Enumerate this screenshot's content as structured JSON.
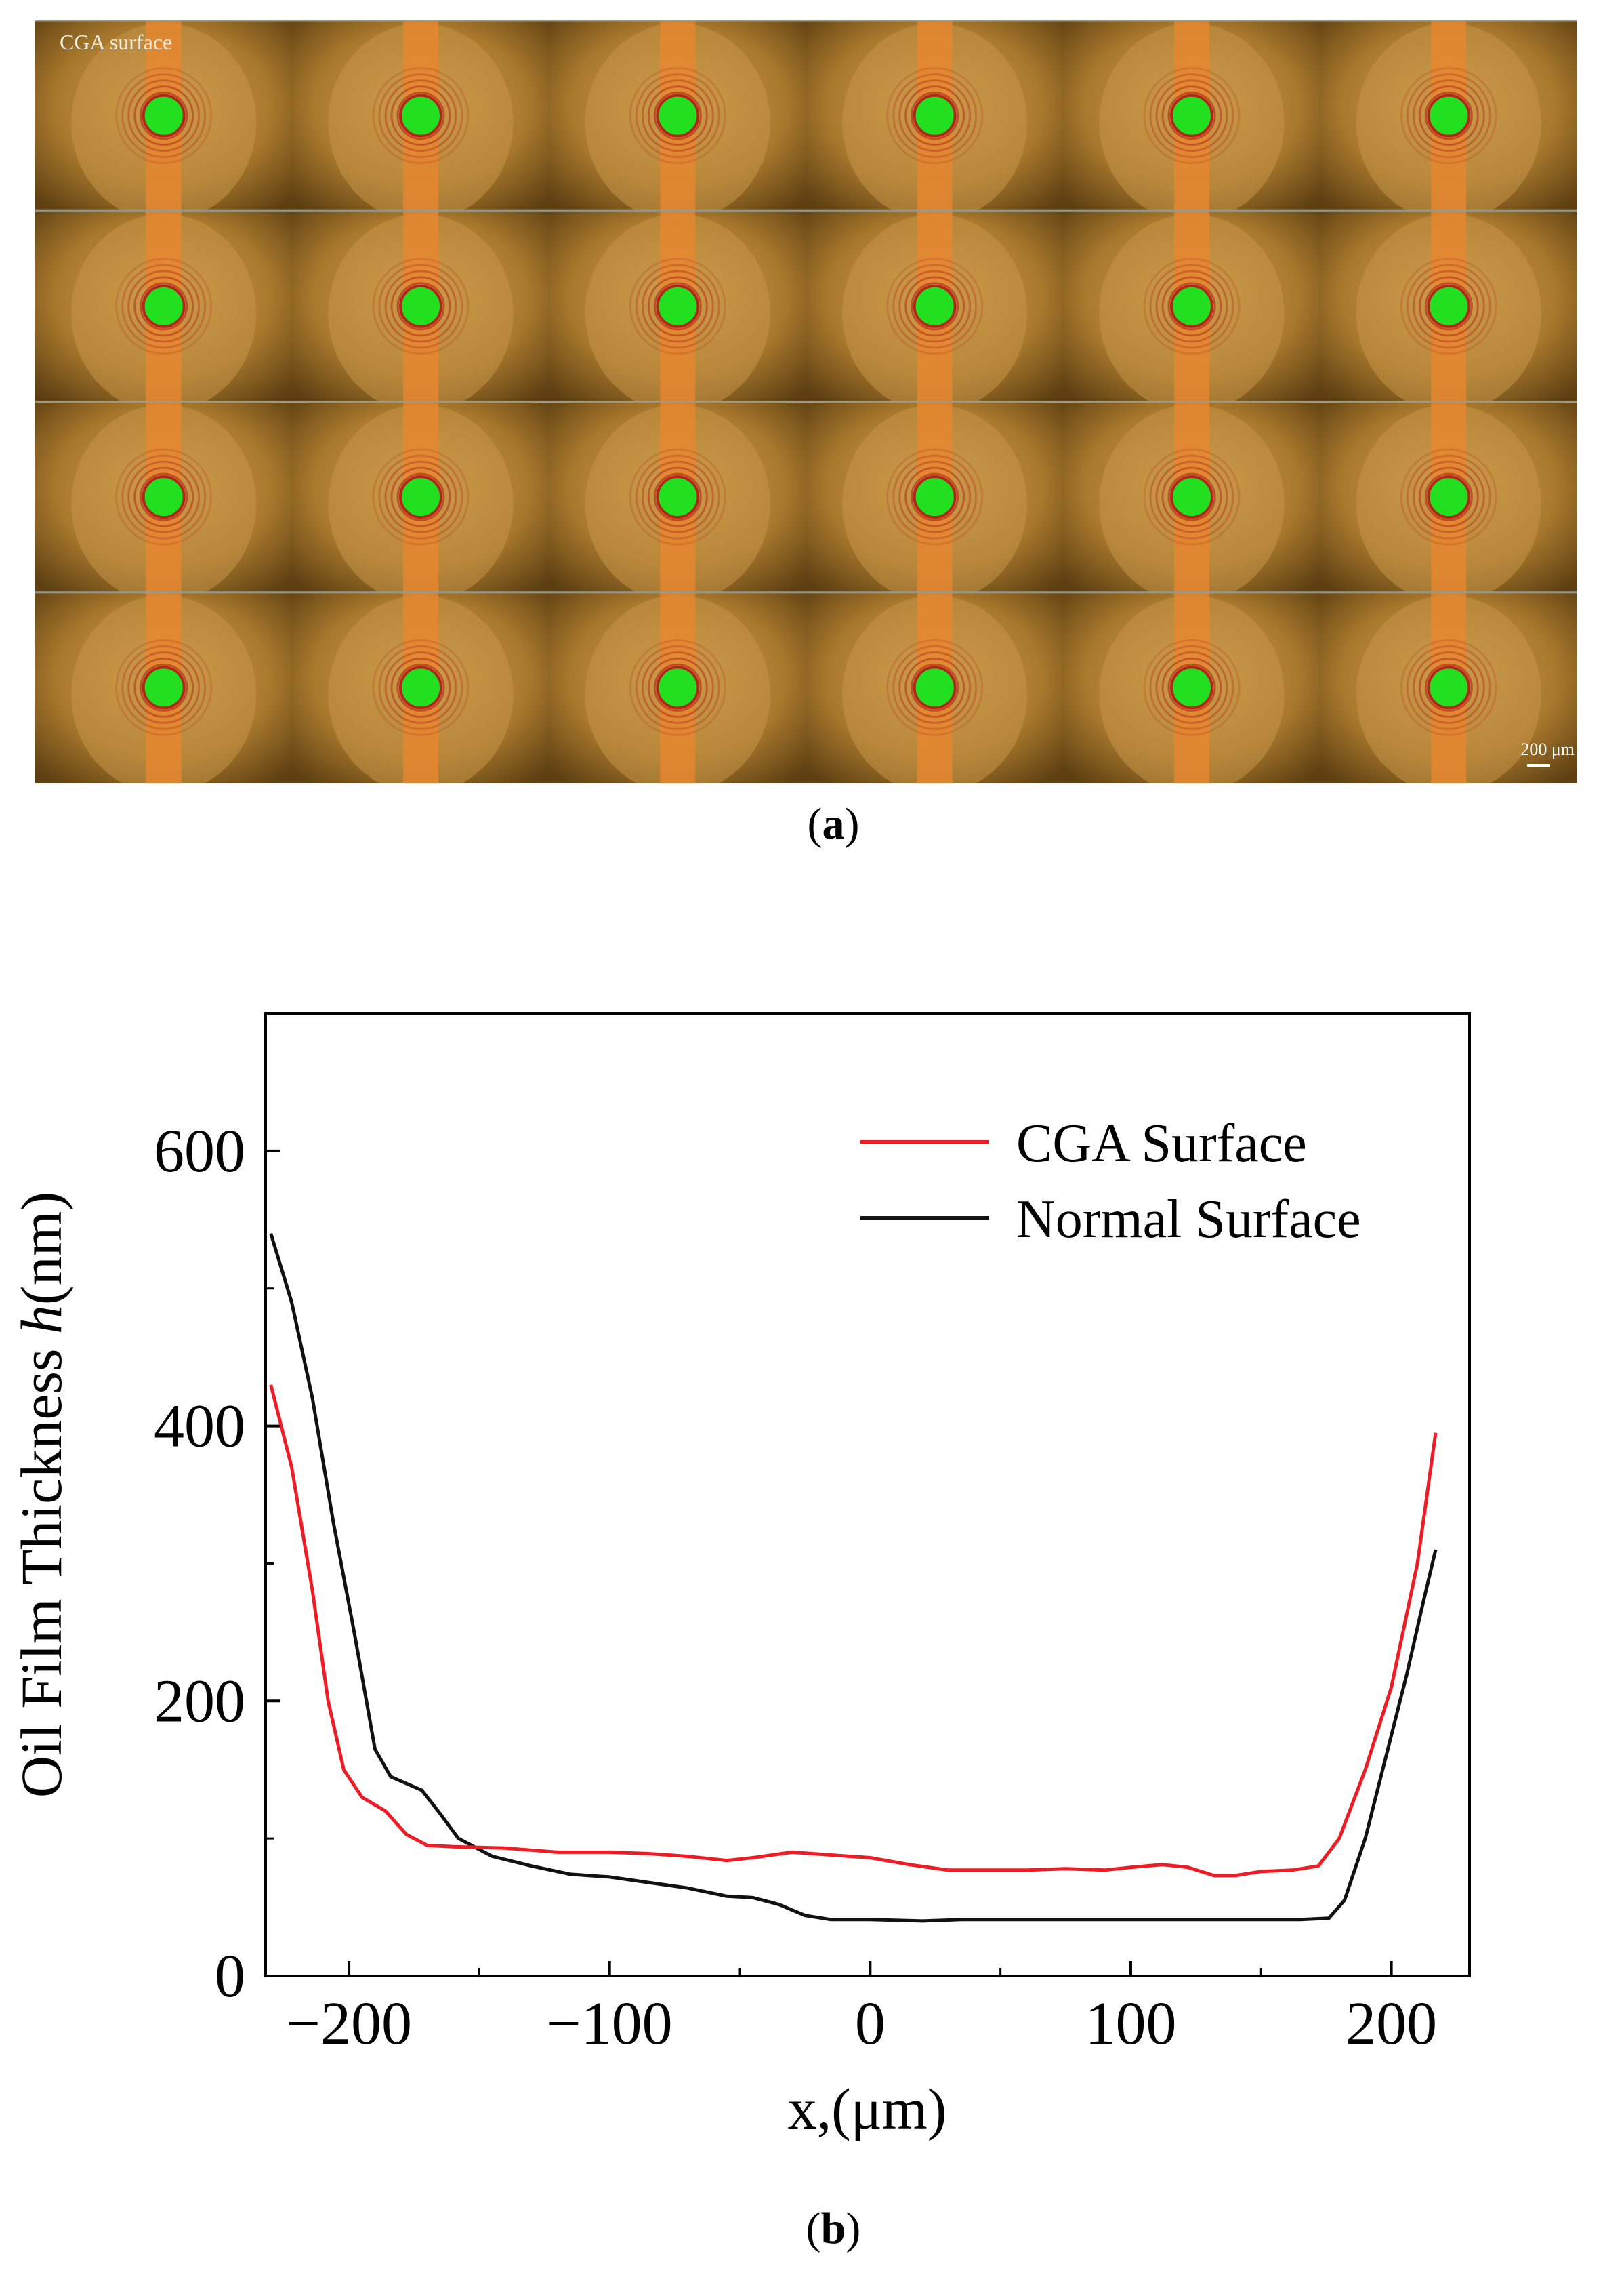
{
  "panel_a": {
    "label_paren_open": "(",
    "label_letter": "a",
    "label_paren_close": ")",
    "corner_text": "CGA surface",
    "scale_text": "200 μm",
    "grid": {
      "rows": 4,
      "cols": 6
    }
  },
  "panel_b": {
    "label_paren_open": "(",
    "label_letter": "b",
    "label_paren_close": ")"
  },
  "colors": {
    "cga": "#ee1c25",
    "normal": "#111111",
    "contact_green": "#22e020",
    "frame_bg": "#6b4a18",
    "track_orange": "#e8862e"
  },
  "chart_data": {
    "type": "line",
    "xlabel": "x,(μm)",
    "ylabel_prefix": "Oil Film Thickness ",
    "ylabel_var": "h",
    "ylabel_suffix": "(nm)",
    "xlim": [
      -232,
      230
    ],
    "ylim": [
      0,
      700
    ],
    "xticks": [
      -200,
      -100,
      0,
      100,
      200
    ],
    "xtick_labels": [
      "−200",
      "−100",
      "0",
      "100",
      "200"
    ],
    "yticks": [
      0,
      200,
      400,
      600
    ],
    "ytick_labels": [
      "0",
      "200",
      "400",
      "600"
    ],
    "legend_position": "top-right",
    "series": [
      {
        "name": "CGA Surface",
        "color": "#ee1c25",
        "points": [
          [
            -230,
            430
          ],
          [
            -222,
            370
          ],
          [
            -214,
            280
          ],
          [
            -208,
            200
          ],
          [
            -202,
            150
          ],
          [
            -195,
            130
          ],
          [
            -186,
            120
          ],
          [
            -178,
            103
          ],
          [
            -170,
            95
          ],
          [
            -160,
            94
          ],
          [
            -140,
            93
          ],
          [
            -120,
            90
          ],
          [
            -100,
            90
          ],
          [
            -85,
            89
          ],
          [
            -70,
            87
          ],
          [
            -55,
            84
          ],
          [
            -45,
            86
          ],
          [
            -30,
            90
          ],
          [
            -15,
            88
          ],
          [
            0,
            86
          ],
          [
            15,
            81
          ],
          [
            30,
            77
          ],
          [
            45,
            77
          ],
          [
            60,
            77
          ],
          [
            75,
            78
          ],
          [
            90,
            77
          ],
          [
            100,
            79
          ],
          [
            112,
            81
          ],
          [
            122,
            79
          ],
          [
            132,
            73
          ],
          [
            140,
            73
          ],
          [
            150,
            76
          ],
          [
            162,
            77
          ],
          [
            172,
            80
          ],
          [
            180,
            100
          ],
          [
            190,
            150
          ],
          [
            200,
            210
          ],
          [
            210,
            300
          ],
          [
            217,
            395
          ]
        ]
      },
      {
        "name": "Normal Surface",
        "color": "#111111",
        "points": [
          [
            -230,
            540
          ],
          [
            -222,
            490
          ],
          [
            -214,
            420
          ],
          [
            -206,
            330
          ],
          [
            -198,
            250
          ],
          [
            -190,
            165
          ],
          [
            -184,
            145
          ],
          [
            -178,
            140
          ],
          [
            -172,
            135
          ],
          [
            -165,
            118
          ],
          [
            -158,
            100
          ],
          [
            -145,
            87
          ],
          [
            -130,
            80
          ],
          [
            -115,
            74
          ],
          [
            -100,
            72
          ],
          [
            -85,
            68
          ],
          [
            -70,
            64
          ],
          [
            -55,
            58
          ],
          [
            -45,
            57
          ],
          [
            -35,
            52
          ],
          [
            -25,
            44
          ],
          [
            -15,
            41
          ],
          [
            0,
            41
          ],
          [
            20,
            40
          ],
          [
            35,
            41
          ],
          [
            60,
            41
          ],
          [
            90,
            41
          ],
          [
            120,
            41
          ],
          [
            150,
            41
          ],
          [
            165,
            41
          ],
          [
            176,
            42
          ],
          [
            182,
            55
          ],
          [
            190,
            100
          ],
          [
            198,
            160
          ],
          [
            206,
            220
          ],
          [
            212,
            270
          ],
          [
            217,
            310
          ]
        ]
      }
    ]
  }
}
